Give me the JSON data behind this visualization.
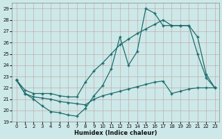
{
  "xlabel": "Humidex (Indice chaleur)",
  "bg_color": "#cde8e8",
  "line_color": "#1b6b6b",
  "grid_color": "#b0d0d0",
  "xlim": [
    -0.5,
    23.5
  ],
  "ylim": [
    19,
    29.5
  ],
  "yticks": [
    19,
    20,
    21,
    22,
    23,
    24,
    25,
    26,
    27,
    28,
    29
  ],
  "xticks": [
    0,
    1,
    2,
    3,
    4,
    5,
    6,
    7,
    8,
    9,
    10,
    11,
    12,
    13,
    14,
    15,
    16,
    17,
    18,
    19,
    20,
    21,
    22,
    23
  ],
  "curve_spike": [
    22.7,
    21.5,
    21.0,
    20.4,
    19.9,
    19.8,
    19.6,
    19.5,
    20.2,
    21.3,
    22.2,
    23.7,
    26.5,
    24.0,
    25.2,
    29.0,
    28.6,
    27.5,
    27.5,
    27.5,
    27.5,
    25.0,
    22.9,
    22.0
  ],
  "curve_upper": [
    22.7,
    21.8,
    21.5,
    21.5,
    21.5,
    21.3,
    21.2,
    21.2,
    22.5,
    23.5,
    24.2,
    25.0,
    25.8,
    26.3,
    26.8,
    27.2,
    27.6,
    28.0,
    27.5,
    27.5,
    27.5,
    26.5,
    23.2,
    22.0
  ],
  "curve_lower": [
    22.7,
    21.5,
    21.2,
    21.1,
    21.0,
    20.8,
    20.7,
    20.6,
    20.5,
    21.0,
    21.3,
    21.5,
    21.7,
    21.9,
    22.1,
    22.3,
    22.5,
    22.6,
    21.5,
    21.7,
    21.9,
    22.0,
    22.0,
    22.0
  ]
}
